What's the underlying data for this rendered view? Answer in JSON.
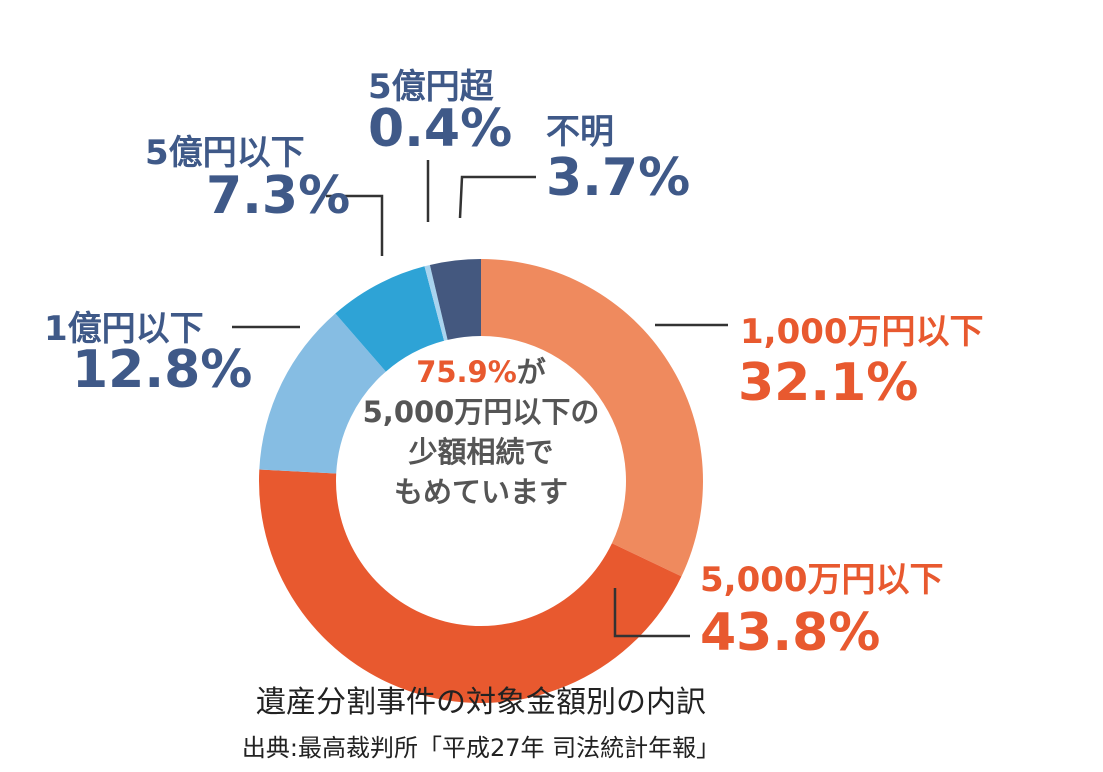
{
  "chart_data": {
    "type": "pie",
    "style": "donut",
    "categories": [
      "1,000万円以下",
      "5,000万円以下",
      "1億円以下",
      "5億円以下",
      "5億円超",
      "不明"
    ],
    "values": [
      32.1,
      43.8,
      12.8,
      7.3,
      0.4,
      3.7
    ],
    "value_labels": [
      "32.1%",
      "43.8%",
      "12.8%",
      "7.3%",
      "0.4%",
      "3.7%"
    ],
    "colors": [
      "#ef8a5e",
      "#e8592f",
      "#86bde3",
      "#2ea3d6",
      "#a9d4ef",
      "#44587f"
    ],
    "label_colors": [
      "#e8592f",
      "#e8592f",
      "#3f5988",
      "#3f5988",
      "#3f5988",
      "#3f5988"
    ],
    "start": "12 o'clock",
    "direction": "clockwise",
    "center_text": {
      "highlight": "75.9%",
      "highlight_suffix": "が",
      "line2": "5,000万円以下の",
      "line3": "少額相続で",
      "line4": "もめています"
    },
    "title": "遺産分割事件の対象金額別の内訳",
    "source": "出典:最高裁判所「平成27年 司法統計年報」"
  },
  "colors": {
    "highlight": "#e8592f",
    "center_text": "#555555",
    "leader_line": "#333333"
  }
}
